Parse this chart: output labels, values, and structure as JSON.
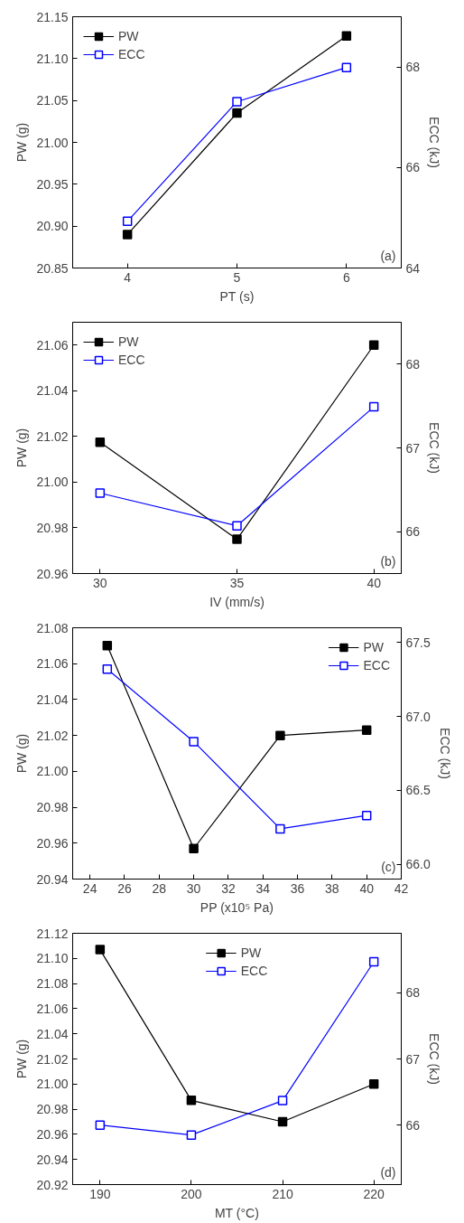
{
  "chart_data": [
    {
      "type": "line",
      "x": [
        4,
        5,
        6
      ],
      "xlabel": "PT (s)",
      "ylabel": "PW (g)",
      "y2label": "ECC (kJ)",
      "xlim": [
        3.5,
        6.5
      ],
      "xticks": [
        4,
        5,
        6
      ],
      "ylim": [
        20.85,
        21.15
      ],
      "yticks": [
        {
          "value": 20.85,
          "label": "20.85"
        },
        {
          "value": 20.9,
          "label": "20.90"
        },
        {
          "value": 20.95,
          "label": "20.95"
        },
        {
          "value": 21.0,
          "label": "21.00"
        },
        {
          "value": 21.05,
          "label": "21.05"
        },
        {
          "value": 21.1,
          "label": "21.10"
        },
        {
          "value": 21.15,
          "label": "21.15"
        }
      ],
      "y2lim": [
        64,
        69
      ],
      "y2ticks": [
        64,
        66,
        68
      ],
      "marker": "square",
      "grid": false,
      "legend": "top left",
      "annotations": [
        "(a)"
      ],
      "series": [
        {
          "name": "PW",
          "color": "#000000",
          "values": [
            20.89,
            21.035,
            21.127
          ]
        },
        {
          "name": "ECC",
          "color": "#0000ff",
          "axis": "y2",
          "values": [
            64.93,
            67.31,
            67.99
          ]
        }
      ]
    },
    {
      "type": "line",
      "x": [
        30,
        35,
        40
      ],
      "xlabel": "IV (mm/s)",
      "ylabel": "PW (g)",
      "y2label": "ECC (kJ)",
      "xlim": [
        29,
        41
      ],
      "xticks": [
        30,
        35,
        40
      ],
      "ylim": [
        20.96,
        21.07
      ],
      "yticks": [
        {
          "value": 20.96,
          "label": "20.96"
        },
        {
          "value": 20.98,
          "label": "20.98"
        },
        {
          "value": 21.0,
          "label": "21.00"
        },
        {
          "value": 21.02,
          "label": "21.02"
        },
        {
          "value": 21.04,
          "label": "21.04"
        },
        {
          "value": 21.06,
          "label": "21.06"
        }
      ],
      "y2lim": [
        65.5,
        68.5
      ],
      "y2ticks": [
        66,
        67,
        68
      ],
      "marker": "square",
      "grid": false,
      "legend": "top left",
      "annotations": [
        "(b)"
      ],
      "series": [
        {
          "name": "PW",
          "color": "#000000",
          "values": [
            21.0175,
            20.975,
            21.06
          ]
        },
        {
          "name": "ECC",
          "color": "#0000ff",
          "axis": "y2",
          "values": [
            66.46,
            66.07,
            67.49
          ]
        }
      ]
    },
    {
      "type": "line",
      "x": [
        25,
        30,
        35,
        40
      ],
      "xlabel": "PP (x10⁵ Pa)",
      "ylabel": "PW (g)",
      "y2label": "ECC (kJ)",
      "xlim": [
        23,
        42
      ],
      "xticks": [
        24,
        26,
        28,
        30,
        32,
        34,
        36,
        38,
        40,
        42
      ],
      "ylim": [
        20.94,
        21.08
      ],
      "yticks": [
        {
          "value": 20.94,
          "label": "20.94"
        },
        {
          "value": 20.96,
          "label": "20.96"
        },
        {
          "value": 20.98,
          "label": "20.98"
        },
        {
          "value": 21.0,
          "label": "21.00"
        },
        {
          "value": 21.02,
          "label": "21.02"
        },
        {
          "value": 21.04,
          "label": "21.04"
        },
        {
          "value": 21.06,
          "label": "21.06"
        },
        {
          "value": 21.08,
          "label": "21.08"
        }
      ],
      "y2lim": [
        65.9,
        67.6
      ],
      "y2ticks": [
        {
          "value": 66.0,
          "label": "66.0"
        },
        {
          "value": 66.5,
          "label": "66.5"
        },
        {
          "value": 67.0,
          "label": "67.0"
        },
        {
          "value": 67.5,
          "label": "67.5"
        }
      ],
      "marker": "square",
      "grid": false,
      "legend": "top right",
      "annotations": [
        "(c)"
      ],
      "series": [
        {
          "name": "PW",
          "color": "#000000",
          "values": [
            21.07,
            20.957,
            21.02,
            21.023
          ]
        },
        {
          "name": "ECC",
          "color": "#0000ff",
          "axis": "y2",
          "values": [
            67.32,
            66.83,
            66.24,
            66.33
          ]
        }
      ]
    },
    {
      "type": "line",
      "x": [
        190,
        200,
        210,
        220
      ],
      "xlabel": "MT (°C)",
      "ylabel": "PW (g)",
      "y2label": "ECC (kJ)",
      "xlim": [
        187,
        223
      ],
      "xticks": [
        190,
        200,
        210,
        220
      ],
      "ylim": [
        20.92,
        21.12
      ],
      "yticks": [
        {
          "value": 20.92,
          "label": "20.92"
        },
        {
          "value": 20.94,
          "label": "20.94"
        },
        {
          "value": 20.96,
          "label": "20.96"
        },
        {
          "value": 20.98,
          "label": "20.98"
        },
        {
          "value": 21.0,
          "label": "21.00"
        },
        {
          "value": 21.02,
          "label": "21.02"
        },
        {
          "value": 21.04,
          "label": "21.04"
        },
        {
          "value": 21.06,
          "label": "21.06"
        },
        {
          "value": 21.08,
          "label": "21.08"
        },
        {
          "value": 21.1,
          "label": "21.10"
        },
        {
          "value": 21.12,
          "label": "21.12"
        }
      ],
      "y2lim": [
        65.1,
        68.9
      ],
      "y2ticks": [
        66,
        67,
        68
      ],
      "marker": "square",
      "grid": false,
      "legend": "top",
      "annotations": [
        "(d)"
      ],
      "series": [
        {
          "name": "PW",
          "color": "#000000",
          "values": [
            21.107,
            20.987,
            20.97,
            21.0
          ]
        },
        {
          "name": "ECC",
          "color": "#0000ff",
          "axis": "y2",
          "values": [
            66.0,
            65.85,
            66.37,
            68.47
          ]
        }
      ]
    }
  ]
}
